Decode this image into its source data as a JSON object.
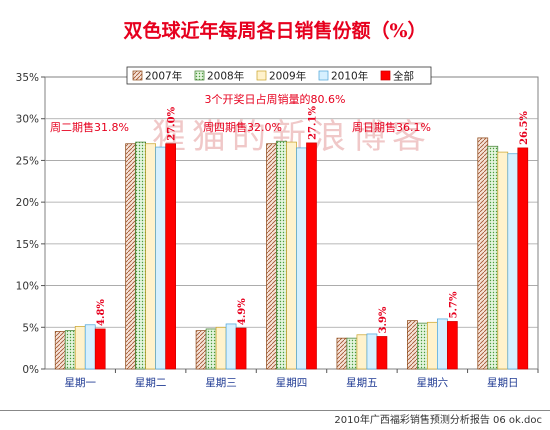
{
  "colors": {
    "title": "#e6001e",
    "annotation": "#e6001e",
    "axis_text": "#333333",
    "x_label": "#1f3a93",
    "value_label": "#e6001e",
    "watermark": "#f0c8c8",
    "series": [
      "#f2d9cc",
      "#d6efd0",
      "#fff2cc",
      "#d6f0ff",
      "#ff0000"
    ],
    "series_pattern": [
      "diag-brown",
      "dots-green",
      "plain-yellow",
      "plain-blue",
      "solid-red"
    ]
  },
  "watermark": "猩猫的新浪博客",
  "footer": "2010年广西福彩销售预测分析报告 06 ok.doc",
  "chart_data": {
    "type": "bar",
    "title": "双色球近年每周各日销售份额（%）",
    "categories": [
      "星期一",
      "星期二",
      "星期三",
      "星期四",
      "星期五",
      "星期六",
      "星期日"
    ],
    "series": [
      {
        "name": "2007年",
        "values": [
          4.5,
          27.0,
          4.6,
          27.0,
          3.7,
          5.8,
          27.7
        ]
      },
      {
        "name": "2008年",
        "values": [
          4.6,
          27.2,
          4.8,
          27.3,
          3.7,
          5.5,
          26.7
        ]
      },
      {
        "name": "2009年",
        "values": [
          5.1,
          27.0,
          5.0,
          27.2,
          4.1,
          5.6,
          26.0
        ]
      },
      {
        "name": "2010年",
        "values": [
          5.3,
          26.6,
          5.4,
          26.5,
          4.2,
          6.0,
          25.8
        ]
      },
      {
        "name": "全部",
        "values": [
          4.8,
          27.0,
          4.9,
          27.1,
          3.9,
          5.7,
          26.5
        ]
      }
    ],
    "value_labels": [
      "4.8%",
      "27.0%",
      "4.9%",
      "27.1%",
      "3.9%",
      "5.7%",
      "26.5%"
    ],
    "yticks": [
      "0%",
      "5%",
      "10%",
      "15%",
      "20%",
      "25%",
      "30%",
      "35%"
    ],
    "ylim": [
      0,
      35
    ],
    "legend_position": "top-center",
    "grid": true,
    "annotations": [
      {
        "text": "3个开奖日占周销量的80.6%"
      },
      {
        "text": "周二期售31.8%"
      },
      {
        "text": "周四期售32.0%"
      },
      {
        "text": "周日期售36.1%"
      }
    ]
  }
}
